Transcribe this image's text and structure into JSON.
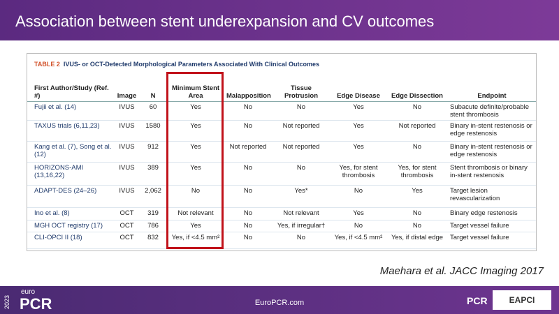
{
  "header": {
    "title": "Association between stent underexpansion and CV outcomes"
  },
  "table": {
    "label": "TABLE 2",
    "caption": "IVUS- or OCT-Detected Morphological Parameters Associated With Clinical Outcomes",
    "columns": [
      "First Author/Study (Ref. #)",
      "Image",
      "N",
      "Minimum Stent Area",
      "Malapposition",
      "Tissue Protrusion",
      "Edge Disease",
      "Edge Dissection",
      "Endpoint"
    ],
    "rows": [
      [
        "Fujii et al. (14)",
        "IVUS",
        "60",
        "Yes",
        "No",
        "No",
        "Yes",
        "No",
        "Subacute definite/probable stent thrombosis"
      ],
      [
        "TAXUS trials (6,11,23)",
        "IVUS",
        "1580",
        "Yes",
        "No",
        "Not reported",
        "Yes",
        "Not reported",
        "Binary in-stent restenosis or edge restenosis"
      ],
      [
        "Kang et al. (7), Song et al. (12)",
        "IVUS",
        "912",
        "Yes",
        "Not reported",
        "Not reported",
        "Yes",
        "No",
        "Binary in-stent restenosis or edge restenosis"
      ],
      [
        "HORIZONS-AMI (13,16,22)",
        "IVUS",
        "389",
        "Yes",
        "No",
        "No",
        "Yes, for stent thrombosis",
        "Yes, for stent thrombosis",
        "Stent thrombosis or binary in-stent restenosis"
      ],
      [
        "ADAPT-DES (24–26)",
        "IVUS",
        "2,062",
        "No",
        "No",
        "Yes*",
        "No",
        "Yes",
        "Target lesion revascularization"
      ],
      [
        "Ino et al. (8)",
        "OCT",
        "319",
        "Not relevant",
        "No",
        "Not relevant",
        "Yes",
        "No",
        "Binary edge restenosis"
      ],
      [
        "MGH OCT registry (17)",
        "OCT",
        "786",
        "Yes",
        "No",
        "Yes, if irregular†",
        "No",
        "No",
        "Target vessel failure"
      ],
      [
        "CLI-OPCI II (18)",
        "OCT",
        "832",
        "Yes, if <4.5 mm²",
        "No",
        "No",
        "Yes, if <4.5 mm²",
        "Yes, if distal edge",
        "Target vessel failure"
      ]
    ]
  },
  "citation": "Maehara et al. JACC Imaging 2017",
  "footer": {
    "year": "2023",
    "brand_top": "euro",
    "brand": "PCR",
    "url": "EuroPCR.com",
    "logo_pcr": "PCR",
    "logo_eapci": "EAPCI"
  }
}
